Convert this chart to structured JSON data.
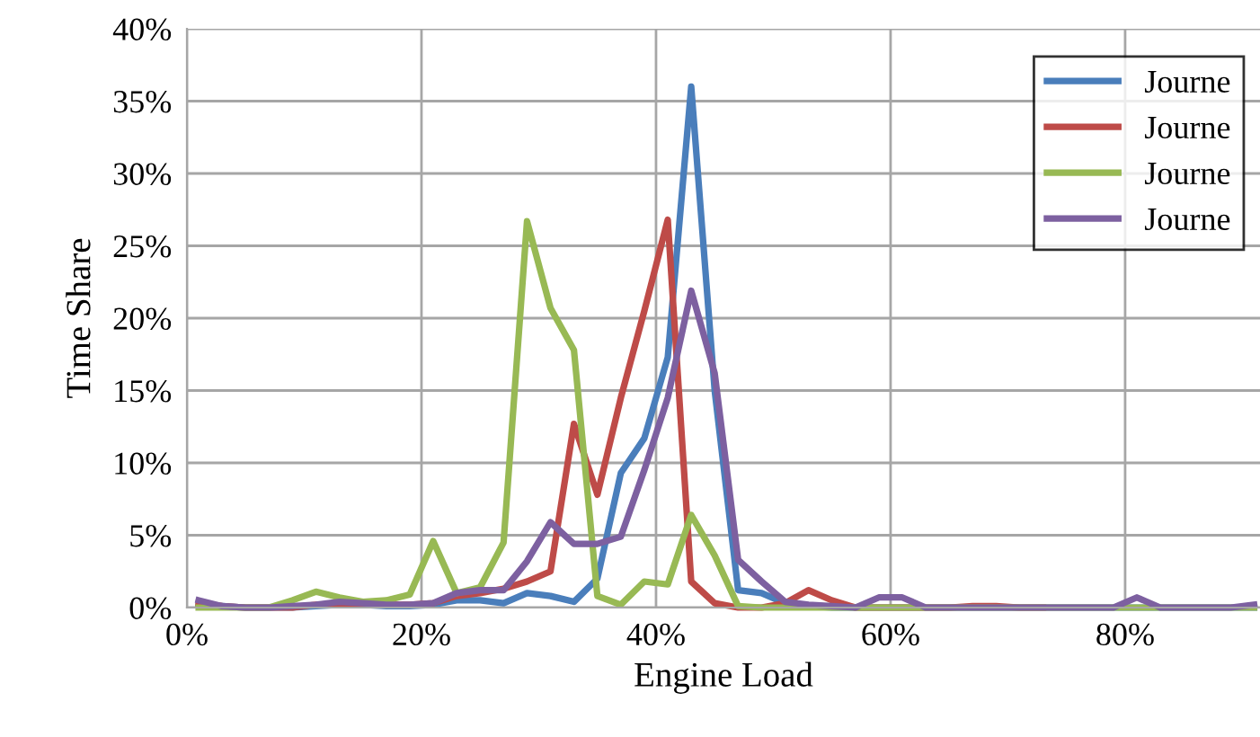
{
  "chart_data": {
    "type": "line",
    "xlabel": "Engine Load",
    "ylabel": "Time Share",
    "x": [
      1,
      3,
      5,
      7,
      9,
      11,
      13,
      15,
      17,
      19,
      21,
      23,
      25,
      27,
      29,
      31,
      33,
      35,
      37,
      39,
      41,
      43,
      45,
      47,
      49,
      51,
      53,
      55,
      57,
      59,
      61,
      63,
      65,
      67,
      69,
      71,
      73,
      75,
      77,
      79,
      81,
      83,
      85,
      87,
      89,
      91
    ],
    "series": [
      {
        "name": "Journe",
        "color": "#4a7ebb",
        "values": [
          0.2,
          0.1,
          0,
          0,
          0,
          0.1,
          0.2,
          0.2,
          0.1,
          0.1,
          0.2,
          0.5,
          0.5,
          0.3,
          1.0,
          0.8,
          0.4,
          2.0,
          9.3,
          11.7,
          17.3,
          36,
          15,
          1.2,
          1.0,
          0.3,
          0.1,
          0,
          0,
          0,
          0,
          0,
          0,
          0,
          0,
          0,
          0,
          0,
          0,
          0,
          0,
          0,
          0,
          0,
          0,
          0
        ]
      },
      {
        "name": "Journe",
        "color": "#be4b48",
        "values": [
          0.3,
          0.1,
          0,
          0,
          0,
          0.2,
          0.2,
          0.2,
          0.2,
          0.2,
          0.3,
          0.8,
          1.0,
          1.3,
          1.8,
          2.5,
          12.7,
          7.8,
          14.5,
          20.5,
          26.8,
          1.8,
          0.3,
          0,
          0,
          0.3,
          1.2,
          0.5,
          0,
          0,
          0,
          0,
          0,
          0.1,
          0.1,
          0,
          0,
          null,
          null,
          null,
          null,
          null,
          null,
          null,
          null,
          null
        ]
      },
      {
        "name": "Journe",
        "color": "#98b954",
        "values": [
          0,
          0,
          0,
          0,
          0.5,
          1.1,
          0.7,
          0.4,
          0.5,
          0.9,
          4.6,
          1.0,
          1.4,
          4.5,
          26.7,
          20.7,
          17.8,
          0.8,
          0.2,
          1.8,
          1.6,
          6.4,
          3.6,
          0.1,
          0,
          0,
          0,
          0,
          0,
          0,
          0,
          0,
          0,
          0,
          0,
          0,
          0,
          0,
          0,
          0,
          0,
          0,
          0,
          0,
          0,
          0
        ]
      },
      {
        "name": "Journe",
        "color": "#7d60a0",
        "values": [
          0.5,
          0.1,
          0,
          0,
          0.1,
          0.2,
          0.4,
          0.3,
          0.2,
          0.2,
          0.3,
          1.0,
          1.2,
          1.2,
          3.2,
          5.9,
          4.4,
          4.4,
          4.9,
          9.5,
          14.5,
          21.9,
          16.2,
          3.3,
          1.8,
          0.4,
          0.2,
          0.1,
          0,
          0.7,
          0.7,
          0,
          0,
          0,
          0,
          0,
          0,
          0,
          0,
          0,
          0.7,
          0,
          0,
          0,
          0,
          0.2
        ]
      }
    ],
    "xlim": [
      0,
      91.5
    ],
    "ylim": [
      0,
      40
    ],
    "xticks": [
      {
        "value": 0,
        "label": "0%"
      },
      {
        "value": 20,
        "label": "20%"
      },
      {
        "value": 40,
        "label": "40%"
      },
      {
        "value": 60,
        "label": "60%"
      },
      {
        "value": 80,
        "label": "80%"
      }
    ],
    "yticks": [
      {
        "value": 0,
        "label": "0%"
      },
      {
        "value": 5,
        "label": "5%"
      },
      {
        "value": 10,
        "label": "10%"
      },
      {
        "value": 15,
        "label": "15%"
      },
      {
        "value": 20,
        "label": "20%"
      },
      {
        "value": 25,
        "label": "25%"
      },
      {
        "value": 30,
        "label": "30%"
      },
      {
        "value": 35,
        "label": "35%"
      },
      {
        "value": 40,
        "label": "40%"
      }
    ],
    "grid": true,
    "legend": "top right",
    "marker": "none",
    "line_style": "solid"
  }
}
